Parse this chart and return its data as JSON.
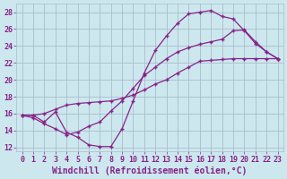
{
  "background_color": "#cce8ee",
  "grid_color": "#aabccc",
  "line_color": "#882288",
  "marker_color": "#882288",
  "xlabel": "Windchill (Refroidissement éolien,°C)",
  "xlabel_fontsize": 7,
  "xlim": [
    -0.5,
    23.5
  ],
  "ylim": [
    11.5,
    29
  ],
  "xticks": [
    0,
    1,
    2,
    3,
    4,
    5,
    6,
    7,
    8,
    9,
    10,
    11,
    12,
    13,
    14,
    15,
    16,
    17,
    18,
    19,
    20,
    21,
    22,
    23
  ],
  "yticks": [
    12,
    14,
    16,
    18,
    20,
    22,
    24,
    26,
    28
  ],
  "tick_fontsize": 6,
  "series": [
    {
      "x": [
        0,
        1,
        2,
        3,
        4,
        5,
        6,
        7,
        8,
        9,
        10,
        11,
        12,
        13,
        14,
        15,
        16,
        17,
        18,
        19,
        20,
        21,
        22,
        23
      ],
      "y": [
        15.8,
        15.8,
        15.0,
        16.2,
        13.8,
        13.2,
        12.3,
        12.1,
        12.1,
        14.2,
        17.5,
        20.8,
        23.5,
        25.2,
        26.7,
        27.8,
        28.0,
        28.2,
        27.5,
        27.2,
        25.8,
        24.3,
        23.3,
        22.5
      ]
    },
    {
      "x": [
        0,
        1,
        2,
        3,
        4,
        5,
        6,
        7,
        8,
        9,
        10,
        11,
        12,
        13,
        14,
        15,
        16,
        17,
        18,
        19,
        20,
        21,
        22,
        23
      ],
      "y": [
        15.8,
        15.8,
        16.0,
        16.5,
        17.0,
        17.2,
        17.3,
        17.4,
        17.5,
        17.8,
        18.2,
        18.8,
        19.5,
        20.0,
        20.8,
        21.5,
        22.2,
        22.3,
        22.4,
        22.5,
        22.5,
        22.5,
        22.5,
        22.5
      ]
    },
    {
      "x": [
        0,
        1,
        2,
        3,
        4,
        5,
        6,
        7,
        8,
        9,
        10,
        11,
        12,
        13,
        14,
        15,
        16,
        17,
        18,
        19,
        20,
        21,
        22,
        23
      ],
      "y": [
        15.8,
        15.5,
        14.8,
        14.2,
        13.5,
        13.8,
        14.5,
        15.0,
        16.3,
        17.5,
        19.0,
        20.5,
        21.5,
        22.5,
        23.3,
        23.8,
        24.2,
        24.5,
        24.8,
        25.8,
        25.9,
        24.5,
        23.3,
        22.5
      ]
    }
  ]
}
